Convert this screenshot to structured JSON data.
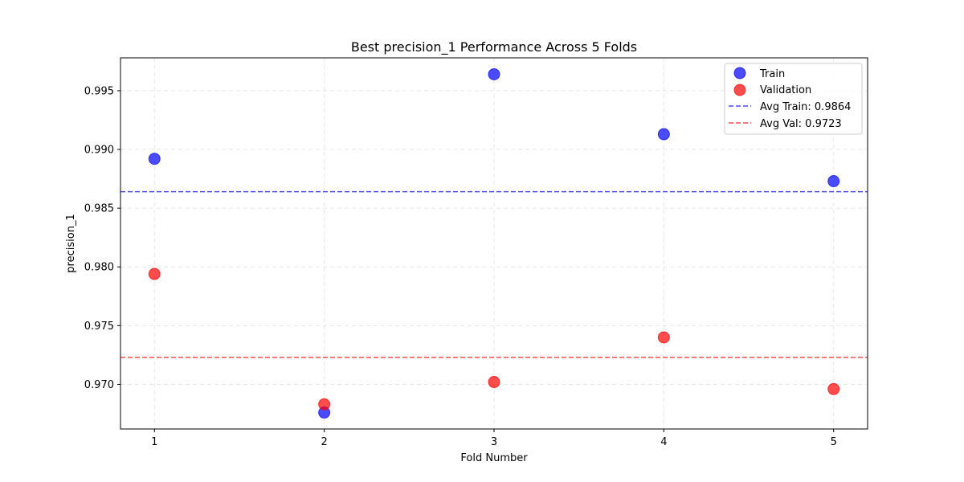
{
  "chart_data": {
    "type": "scatter",
    "title": "Best precision_1 Performance Across 5 Folds",
    "xlabel": "Fold Number",
    "ylabel": "precision_1",
    "x": [
      1,
      2,
      3,
      4,
      5
    ],
    "xlim": [
      0.8,
      5.2
    ],
    "ylim": [
      0.9662,
      0.9978
    ],
    "xticks": [
      "1",
      "2",
      "3",
      "4",
      "5"
    ],
    "yticks": [
      0.97,
      0.975,
      0.98,
      0.985,
      0.99,
      0.995
    ],
    "ytick_labels": [
      "0.970",
      "0.975",
      "0.980",
      "0.985",
      "0.990",
      "0.995"
    ],
    "grid": true,
    "legend_position": "top-right",
    "series": [
      {
        "name": "Train",
        "color": "#0000ff",
        "values": [
          0.9892,
          0.9676,
          0.9964,
          0.9913,
          0.9873
        ]
      },
      {
        "name": "Validation",
        "color": "#ff0000",
        "values": [
          0.9794,
          0.9683,
          0.9702,
          0.974,
          0.9696
        ]
      }
    ],
    "reference_lines": [
      {
        "name": "Avg Train: 0.9864",
        "value": 0.9864,
        "color": "#0000ff"
      },
      {
        "name": "Avg Val: 0.9723",
        "value": 0.9723,
        "color": "#ff0000"
      }
    ]
  }
}
